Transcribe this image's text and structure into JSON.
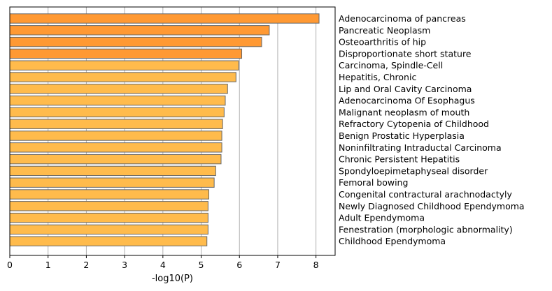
{
  "chart_data": {
    "type": "bar",
    "orientation": "horizontal",
    "xlabel": "-log10(P)",
    "xlim": [
      0,
      8.5
    ],
    "xticks": [
      0,
      1,
      2,
      3,
      4,
      5,
      6,
      7,
      8
    ],
    "grid": "x-major",
    "categories": [
      "Adenocarcinoma of pancreas",
      "Pancreatic Neoplasm",
      "Osteoarthritis of hip",
      "Disproportionate short stature",
      "Carcinoma, Spindle-Cell",
      "Hepatitis, Chronic",
      "Lip and Oral Cavity Carcinoma",
      "Adenocarcinoma Of Esophagus",
      "Malignant neoplasm of mouth",
      "Refractory Cytopenia of Childhood",
      "Benign Prostatic Hyperplasia",
      "Noninfiltrating Intraductal Carcinoma",
      "Chronic Persistent Hepatitis",
      "Spondyloepimetaphyseal disorder",
      "Femoral bowing",
      "Congenital contractural arachnodactyly",
      "Newly Diagnosed Childhood Ependymoma",
      "Adult Ependymoma",
      "Fenestration (morphologic abnormality)",
      "Childhood Ependymoma"
    ],
    "values": [
      8.08,
      6.78,
      6.58,
      6.06,
      5.98,
      5.91,
      5.69,
      5.63,
      5.6,
      5.56,
      5.54,
      5.54,
      5.52,
      5.38,
      5.34,
      5.2,
      5.18,
      5.18,
      5.18,
      5.15
    ],
    "colors": {
      "dark": "#ff9933",
      "light": "#ffbb4c",
      "edge": "#666666",
      "grid": "#b0b0b0"
    },
    "dark_count": 4
  }
}
